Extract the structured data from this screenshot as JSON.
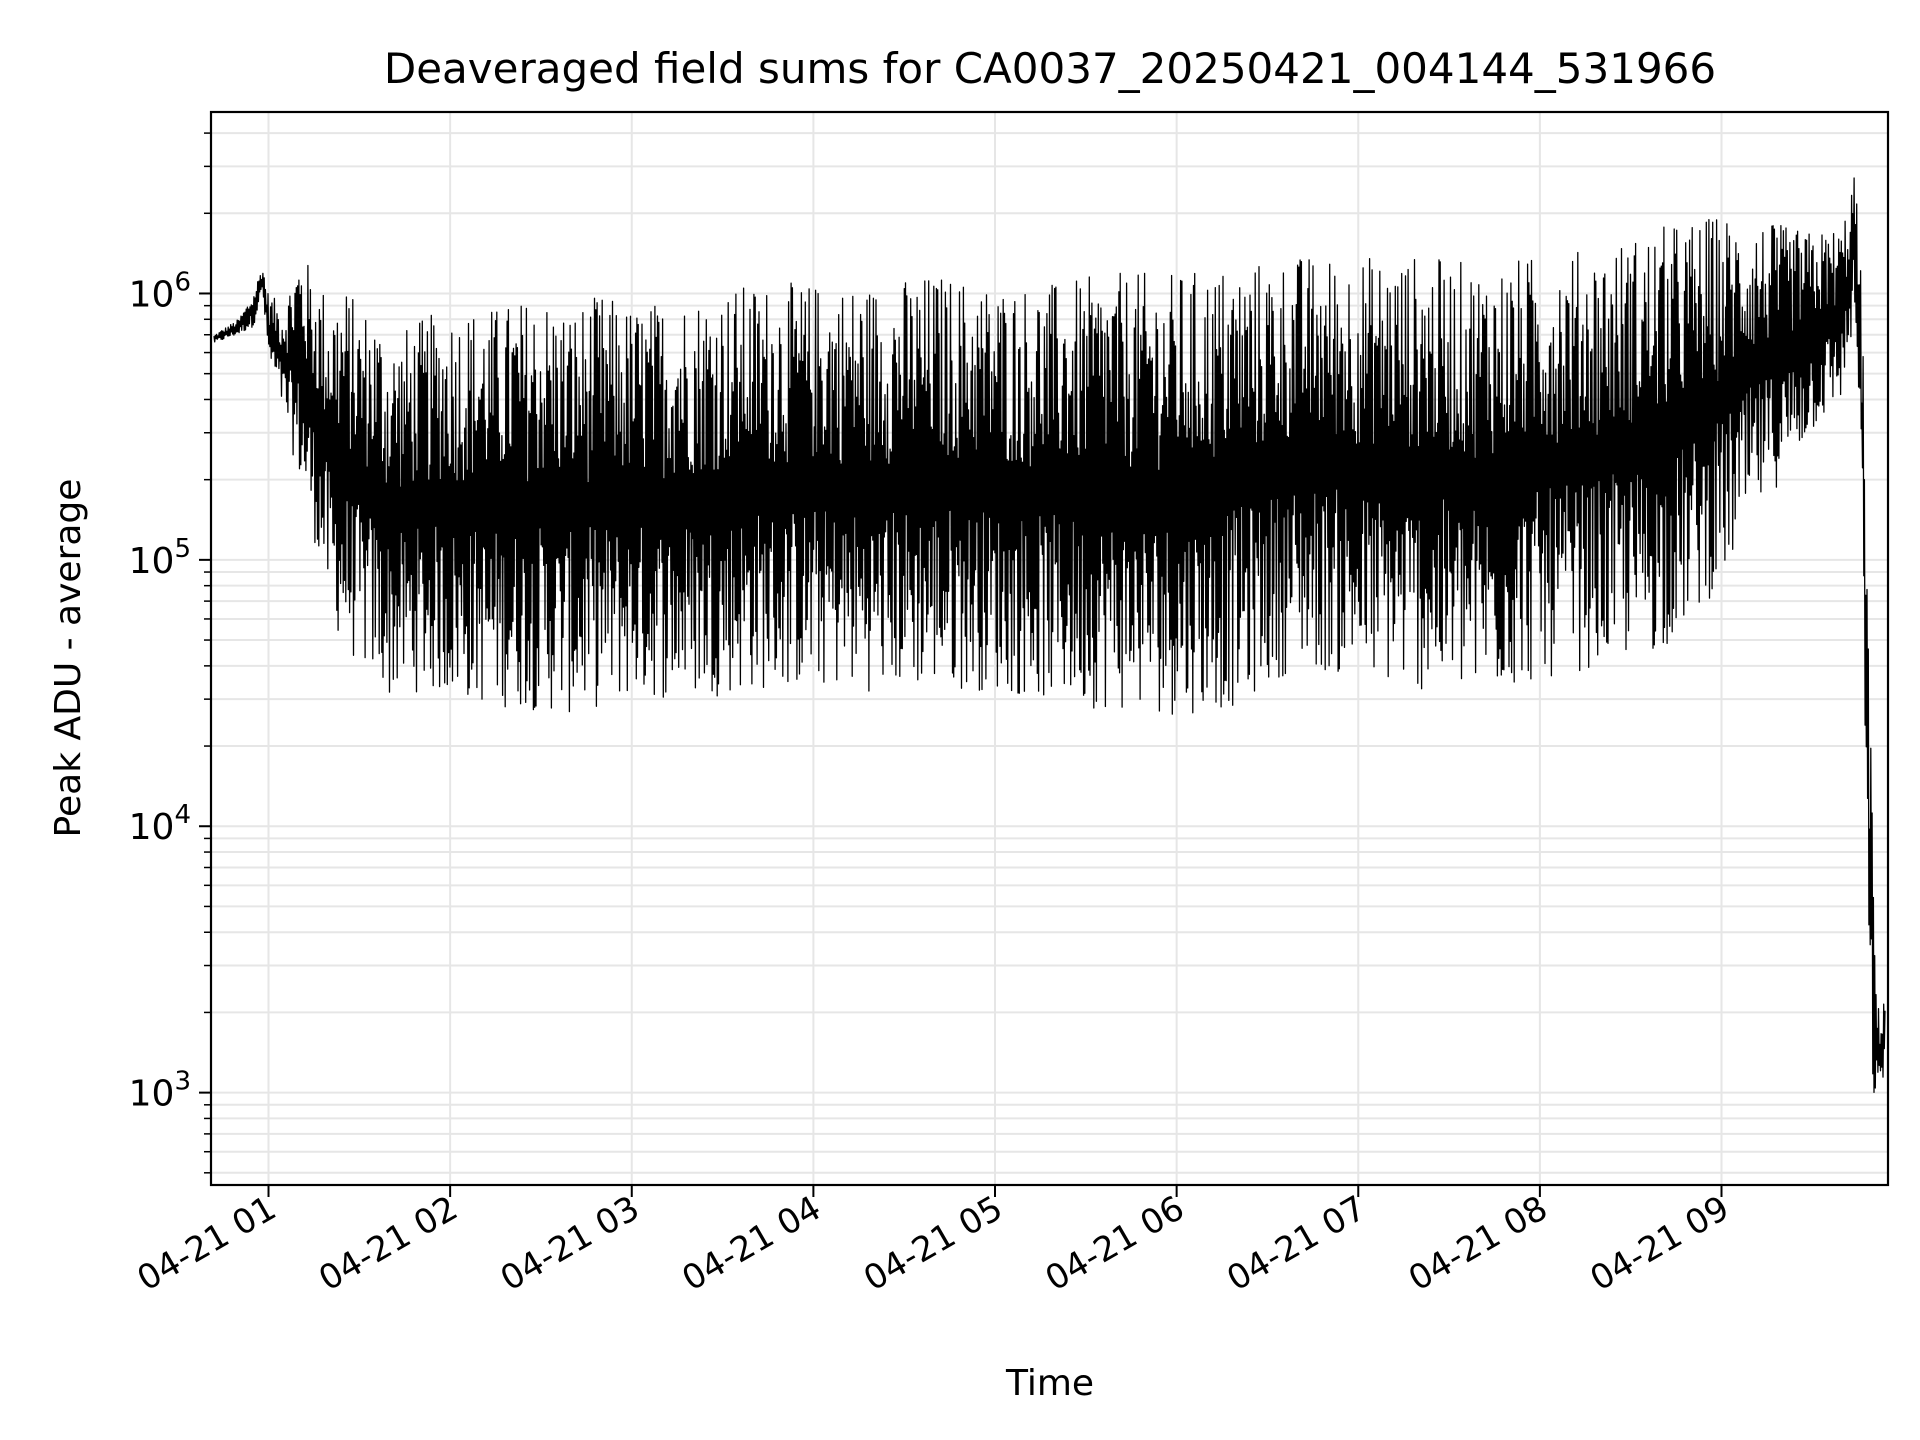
{
  "chart_data": {
    "type": "line",
    "title": "Deaveraged field sums for CA0037_20250421_004144_531966",
    "xlabel": "Time",
    "ylabel": "Peak ADU - average",
    "yscale": "log",
    "grid": true,
    "xlim": [
      "2025-04-21 00:41",
      "2025-04-21 09:55"
    ],
    "ylim": [
      450,
      4800000
    ],
    "x_ticks": [
      {
        "value": "2025-04-21 01:00",
        "label": "04-21 01"
      },
      {
        "value": "2025-04-21 02:00",
        "label": "04-21 02"
      },
      {
        "value": "2025-04-21 03:00",
        "label": "04-21 03"
      },
      {
        "value": "2025-04-21 04:00",
        "label": "04-21 04"
      },
      {
        "value": "2025-04-21 05:00",
        "label": "04-21 05"
      },
      {
        "value": "2025-04-21 06:00",
        "label": "04-21 06"
      },
      {
        "value": "2025-04-21 07:00",
        "label": "04-21 07"
      },
      {
        "value": "2025-04-21 08:00",
        "label": "04-21 08"
      },
      {
        "value": "2025-04-21 09:00",
        "label": "04-21 09"
      }
    ],
    "y_ticks": [
      {
        "value": 1000,
        "base": "10",
        "exp": "3"
      },
      {
        "value": 10000,
        "base": "10",
        "exp": "4"
      },
      {
        "value": 100000,
        "base": "10",
        "exp": "5"
      },
      {
        "value": 1000000,
        "base": "10",
        "exp": "6"
      }
    ],
    "series": [
      {
        "color": "#000000",
        "x": [
          "2025-04-21 00:42",
          "2025-04-21 00:50",
          "2025-04-21 00:55",
          "2025-04-21 00:58",
          "2025-04-21 01:00",
          "2025-04-21 01:05",
          "2025-04-21 01:10",
          "2025-04-21 01:15",
          "2025-04-21 01:20",
          "2025-04-21 01:25",
          "2025-04-21 01:30",
          "2025-04-21 01:35",
          "2025-04-21 01:40",
          "2025-04-21 01:50",
          "2025-04-21 02:00",
          "2025-04-21 02:15",
          "2025-04-21 02:30",
          "2025-04-21 02:40",
          "2025-04-21 02:50",
          "2025-04-21 03:00",
          "2025-04-21 03:20",
          "2025-04-21 03:40",
          "2025-04-21 04:00",
          "2025-04-21 04:20",
          "2025-04-21 04:40",
          "2025-04-21 05:00",
          "2025-04-21 05:20",
          "2025-04-21 05:40",
          "2025-04-21 06:00",
          "2025-04-21 06:20",
          "2025-04-21 06:40",
          "2025-04-21 07:00",
          "2025-04-21 07:20",
          "2025-04-21 07:40",
          "2025-04-21 08:00",
          "2025-04-21 08:20",
          "2025-04-21 08:40",
          "2025-04-21 08:50",
          "2025-04-21 09:00",
          "2025-04-21 09:10",
          "2025-04-21 09:20",
          "2025-04-21 09:30",
          "2025-04-21 09:40",
          "2025-04-21 09:44",
          "2025-04-21 09:46",
          "2025-04-21 09:47",
          "2025-04-21 09:48",
          "2025-04-21 09:49",
          "2025-04-21 09:50",
          "2025-04-21 09:51",
          "2025-04-21 09:52",
          "2025-04-21 09:54"
        ],
        "y_high": [
          700000,
          800000,
          1000000,
          1300000,
          1000000,
          900000,
          1500000,
          1200000,
          1000000,
          1100000,
          900000,
          900000,
          700000,
          800000,
          900000,
          900000,
          1000000,
          900000,
          1000000,
          900000,
          1000000,
          1100000,
          1100000,
          1100000,
          1200000,
          1100000,
          1100000,
          1200000,
          1200000,
          1300000,
          1400000,
          1400000,
          1400000,
          1300000,
          1400000,
          1500000,
          1800000,
          1900000,
          2000000,
          1900000,
          1800000,
          1700000,
          1800000,
          3000000,
          1200000,
          600000,
          100000,
          30000,
          10000,
          3000,
          2000,
          2500
        ],
        "y_low": [
          650000,
          700000,
          750000,
          1000000,
          550000,
          350000,
          200000,
          120000,
          65000,
          45000,
          40000,
          35000,
          30000,
          32000,
          30000,
          28000,
          27000,
          26000,
          28000,
          30000,
          30000,
          32000,
          33000,
          32000,
          33000,
          32000,
          29000,
          27000,
          26000,
          28000,
          40000,
          35000,
          32000,
          30000,
          35000,
          40000,
          45000,
          60000,
          80000,
          140000,
          200000,
          300000,
          400000,
          800000,
          200000,
          50000,
          5000,
          1500,
          1000,
          800,
          900,
          1200
        ]
      }
    ]
  }
}
